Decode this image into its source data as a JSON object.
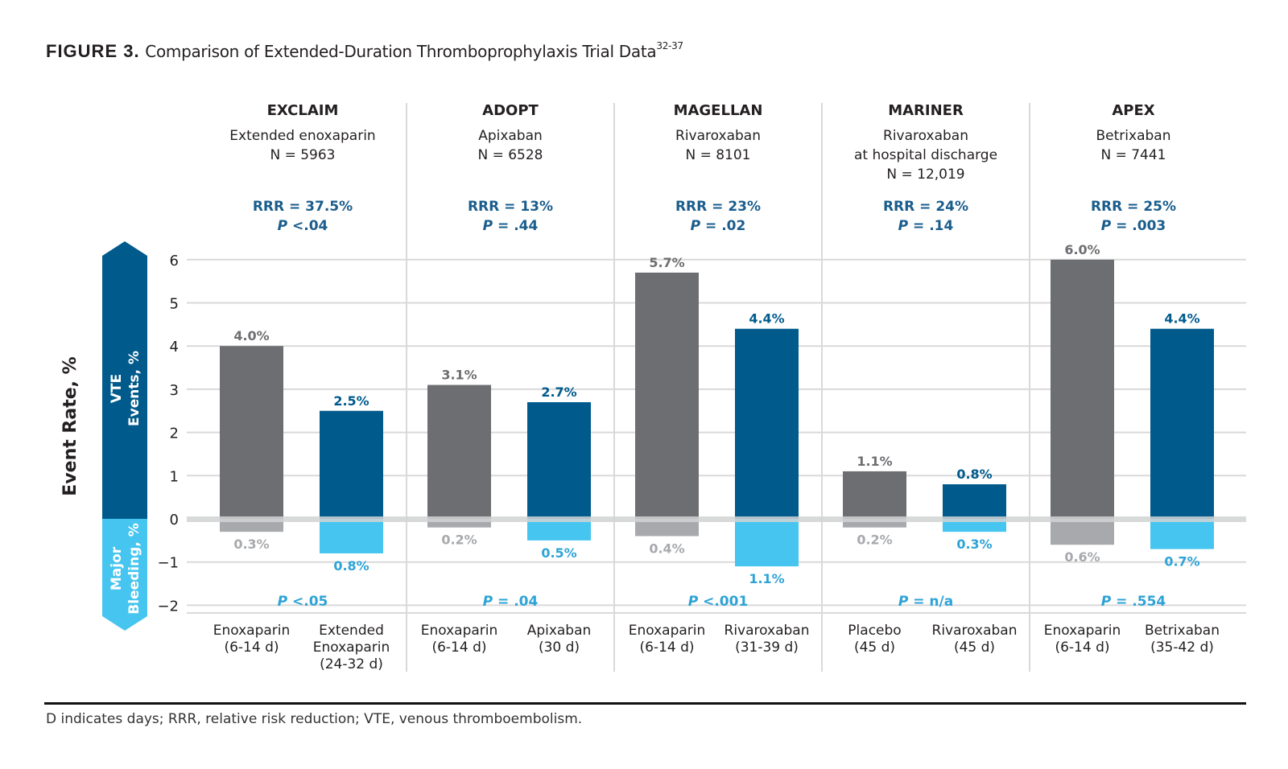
{
  "title": {
    "label": "FIGURE 3.",
    "text": "Comparison of Extended-Duration Thromboprophylaxis Trial Data",
    "superscript": "32-37"
  },
  "footnote": "D indicates days; RRR, relative risk reduction; VTE, venous thromboembolism.",
  "colors": {
    "control_vte": "#6d6e71",
    "control_bleeding": "#a7a9ac",
    "treatment_vte": "#005a8c",
    "treatment_bleeding": "#45c5f0",
    "rrr_text": "#1a5d8c",
    "bleeding_p_text": "#2ea3d6",
    "zero_line": "#d1d3d4",
    "grid": "#d9d9d9"
  },
  "chart_data": {
    "type": "bar",
    "title": "Comparison of Extended-Duration Thromboprophylaxis Trial Data",
    "ylabel": "Event Rate, %",
    "ylim": [
      -2,
      6
    ],
    "yticks": [
      6,
      5,
      4,
      3,
      2,
      1,
      0,
      -1,
      -2
    ],
    "ytick_labels": [
      "6",
      "5",
      "4",
      "3",
      "2",
      "1",
      "0",
      "−1",
      "−2"
    ],
    "grid": true,
    "axis_band_labels": {
      "positive": [
        "VTE",
        "Events, %"
      ],
      "negative": [
        "Major",
        "Bleeding, %"
      ]
    },
    "groups": [
      {
        "trial": "EXCLAIM",
        "drug": [
          "Extended enoxaparin"
        ],
        "n": "N = 5963",
        "rrr": "RRR = 37.5%",
        "p_vte_prefix": "P",
        "p_vte_value": " <.04",
        "p_bleed_prefix": "P",
        "p_bleed_value": " <.05",
        "bars": [
          {
            "arm": "control",
            "label": [
              "Enoxaparin",
              "(6-14 d)"
            ],
            "vte": 4.0,
            "vte_label": "4.0%",
            "bleeding": 0.3,
            "bleeding_label": "0.3%"
          },
          {
            "arm": "treatment",
            "label": [
              "Extended",
              "Enoxaparin",
              "(24-32 d)"
            ],
            "vte": 2.5,
            "vte_label": "2.5%",
            "bleeding": 0.8,
            "bleeding_label": "0.8%"
          }
        ]
      },
      {
        "trial": "ADOPT",
        "drug": [
          "Apixaban"
        ],
        "n": "N = 6528",
        "rrr": "RRR = 13%",
        "p_vte_prefix": "P",
        "p_vte_value": " = .44",
        "p_bleed_prefix": "P",
        "p_bleed_value": " = .04",
        "bars": [
          {
            "arm": "control",
            "label": [
              "Enoxaparin",
              "(6-14 d)"
            ],
            "vte": 3.1,
            "vte_label": "3.1%",
            "bleeding": 0.2,
            "bleeding_label": "0.2%"
          },
          {
            "arm": "treatment",
            "label": [
              "Apixaban",
              "(30 d)"
            ],
            "vte": 2.7,
            "vte_label": "2.7%",
            "bleeding": 0.5,
            "bleeding_label": "0.5%"
          }
        ]
      },
      {
        "trial": "MAGELLAN",
        "drug": [
          "Rivaroxaban"
        ],
        "n": "N = 8101",
        "rrr": "RRR = 23%",
        "p_vte_prefix": "P",
        "p_vte_value": " = .02",
        "p_bleed_prefix": "P",
        "p_bleed_value": " <.001",
        "bars": [
          {
            "arm": "control",
            "label": [
              "Enoxaparin",
              "(6-14 d)"
            ],
            "vte": 5.7,
            "vte_label": "5.7%",
            "bleeding": 0.4,
            "bleeding_label": "0.4%"
          },
          {
            "arm": "treatment",
            "label": [
              "Rivaroxaban",
              "(31-39 d)"
            ],
            "vte": 4.4,
            "vte_label": "4.4%",
            "bleeding": 1.1,
            "bleeding_label": "1.1%"
          }
        ]
      },
      {
        "trial": "MARINER",
        "drug": [
          "Rivaroxaban",
          "at hospital discharge"
        ],
        "n": "N = 12,019",
        "rrr": "RRR = 24%",
        "p_vte_prefix": "P",
        "p_vte_value": " = .14",
        "p_bleed_prefix": "P",
        "p_bleed_value": " = n/a",
        "bars": [
          {
            "arm": "control",
            "label": [
              "Placebo",
              "(45 d)"
            ],
            "vte": 1.1,
            "vte_label": "1.1%",
            "bleeding": 0.2,
            "bleeding_label": "0.2%"
          },
          {
            "arm": "treatment",
            "label": [
              "Rivaroxaban",
              "(45 d)"
            ],
            "vte": 0.8,
            "vte_label": "0.8%",
            "bleeding": 0.3,
            "bleeding_label": "0.3%"
          }
        ]
      },
      {
        "trial": "APEX",
        "drug": [
          "Betrixaban"
        ],
        "n": "N = 7441",
        "rrr": "RRR = 25%",
        "p_vte_prefix": "P",
        "p_vte_value": " = .003",
        "p_bleed_prefix": "P",
        "p_bleed_value": " = .554",
        "bars": [
          {
            "arm": "control",
            "label": [
              "Enoxaparin",
              "(6-14 d)"
            ],
            "vte": 6.0,
            "vte_label": "6.0%",
            "bleeding": 0.6,
            "bleeding_label": "0.6%"
          },
          {
            "arm": "treatment",
            "label": [
              "Betrixaban",
              "(35-42 d)"
            ],
            "vte": 4.4,
            "vte_label": "4.4%",
            "bleeding": 0.7,
            "bleeding_label": "0.7%"
          }
        ]
      }
    ]
  }
}
